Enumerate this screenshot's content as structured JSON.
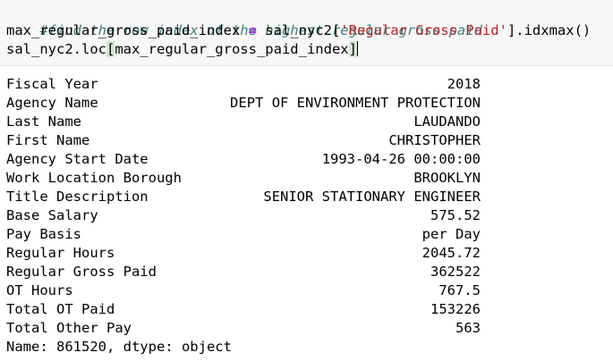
{
  "code": {
    "comment": "#find the row index of the highest regular gross paid",
    "line2_lhs": "max_regular_gross_paid_index",
    "line2_eq": " = ",
    "line2_obj": "sal_nyc2[",
    "line2_str": "'Regular Gross Paid'",
    "line2_tail": "].idxmax()",
    "line3_head": "sal_nyc2.loc",
    "line3_open": "[",
    "line3_arg": "max_regular_gross_paid_index",
    "line3_close": "]"
  },
  "output": {
    "rows": [
      {
        "key": "Fiscal Year",
        "value": "2018"
      },
      {
        "key": "Agency Name",
        "value": "DEPT OF ENVIRONMENT PROTECTION"
      },
      {
        "key": "Last Name",
        "value": "LAUDANDO"
      },
      {
        "key": "First Name",
        "value": "CHRISTOPHER"
      },
      {
        "key": "Agency Start Date",
        "value": "1993-04-26 00:00:00"
      },
      {
        "key": "Work Location Borough",
        "value": "BROOKLYN"
      },
      {
        "key": "Title Description",
        "value": "SENIOR STATIONARY ENGINEER"
      },
      {
        "key": "Base Salary",
        "value": "575.52"
      },
      {
        "key": "Pay Basis",
        "value": "per Day"
      },
      {
        "key": "Regular Hours",
        "value": "2045.72"
      },
      {
        "key": "Regular Gross Paid",
        "value": "362522"
      },
      {
        "key": "OT Hours",
        "value": "767.5"
      },
      {
        "key": "Total OT Paid",
        "value": "153226"
      },
      {
        "key": "Total Other Pay",
        "value": "563"
      }
    ],
    "footer": "Name: 861520, dtype: object"
  },
  "colors": {
    "comment": "#408080",
    "operator": "#aa22ff",
    "string": "#ba2121",
    "cell_background": "#f7f7f7"
  }
}
